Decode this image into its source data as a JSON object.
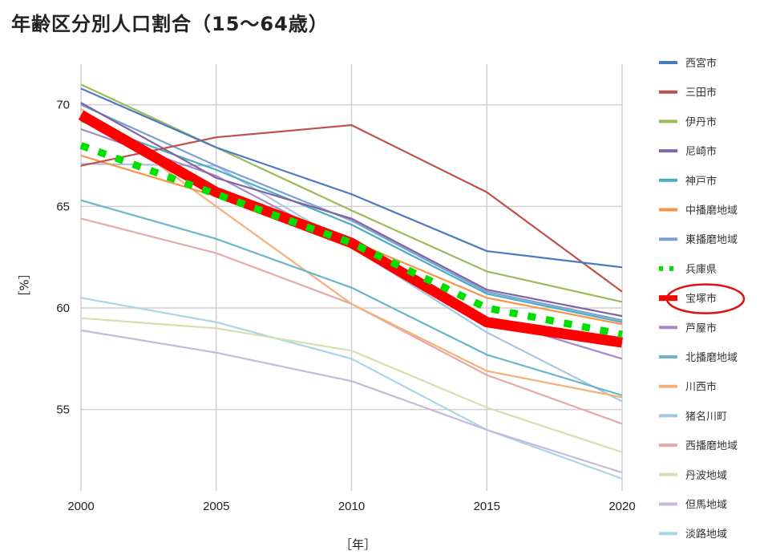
{
  "chart_data": {
    "type": "line",
    "title": "年齢区分別人口割合（15〜64歳）",
    "xlabel": "［年］",
    "ylabel": "［%］",
    "x": [
      2000,
      2005,
      2010,
      2015,
      2020
    ],
    "x_tick_labels": [
      "2000",
      "2005",
      "2010",
      "2015",
      "2020"
    ],
    "y_ticks": [
      55,
      60,
      65,
      70
    ],
    "y_tick_labels": [
      "55",
      "60",
      "65",
      "70"
    ],
    "ylim": [
      51,
      72
    ],
    "grid": true,
    "legend_placement": "right",
    "highlight_annotation": "red ellipse around 宝塚市",
    "series": [
      {
        "name": "西宮市",
        "color": "#4a7bbf",
        "values": [
          70.8,
          67.9,
          65.6,
          62.8,
          62.0
        ]
      },
      {
        "name": "三田市",
        "color": "#c0504d",
        "values": [
          67.0,
          68.4,
          69.0,
          65.7,
          60.8
        ]
      },
      {
        "name": "伊丹市",
        "color": "#9bbb59",
        "values": [
          71.0,
          67.9,
          64.8,
          61.8,
          60.3
        ]
      },
      {
        "name": "尼崎市",
        "color": "#8064a2",
        "values": [
          70.1,
          66.4,
          64.4,
          60.9,
          59.6
        ]
      },
      {
        "name": "神戸市",
        "color": "#4bacc6",
        "values": [
          69.2,
          66.8,
          64.1,
          60.7,
          59.3
        ]
      },
      {
        "name": "中播磨地域",
        "color": "#f79646",
        "values": [
          67.5,
          65.5,
          63.3,
          60.5,
          59.2
        ]
      },
      {
        "name": "東播磨地域",
        "color": "#7ba0d0",
        "values": [
          70.0,
          67.0,
          64.3,
          60.8,
          59.4
        ]
      },
      {
        "name": "兵庫県",
        "color": "#00e000",
        "style": "dotted",
        "values": [
          68.0,
          65.6,
          63.2,
          60.0,
          58.7
        ]
      },
      {
        "name": "宝塚市",
        "color": "#ff0000",
        "style": "thick",
        "values": [
          69.5,
          65.7,
          63.2,
          59.3,
          58.3
        ]
      },
      {
        "name": "芦屋市",
        "color": "#a38cc6",
        "values": [
          68.8,
          66.5,
          63.0,
          59.5,
          57.5
        ]
      },
      {
        "name": "北播磨地域",
        "color": "#6bb5c9",
        "values": [
          65.3,
          63.4,
          61.0,
          57.7,
          55.7
        ]
      },
      {
        "name": "川西市",
        "color": "#f5b07a",
        "values": [
          69.8,
          65.0,
          60.2,
          56.9,
          55.6
        ]
      },
      {
        "name": "猪名川町",
        "color": "#aac4e0",
        "values": [
          67.1,
          67.0,
          63.0,
          58.8,
          55.4
        ]
      },
      {
        "name": "西播磨地域",
        "color": "#e6a9a8",
        "values": [
          64.4,
          62.7,
          60.2,
          56.7,
          54.3
        ]
      },
      {
        "name": "丹波地域",
        "color": "#d4e0b0",
        "values": [
          59.5,
          59.0,
          57.9,
          55.1,
          52.9
        ]
      },
      {
        "name": "但馬地域",
        "color": "#c7b8dc",
        "values": [
          58.9,
          57.8,
          56.4,
          54.0,
          51.9
        ]
      },
      {
        "name": "淡路地域",
        "color": "#a9d5e4",
        "values": [
          60.5,
          59.3,
          57.5,
          54.0,
          51.6
        ]
      }
    ]
  }
}
